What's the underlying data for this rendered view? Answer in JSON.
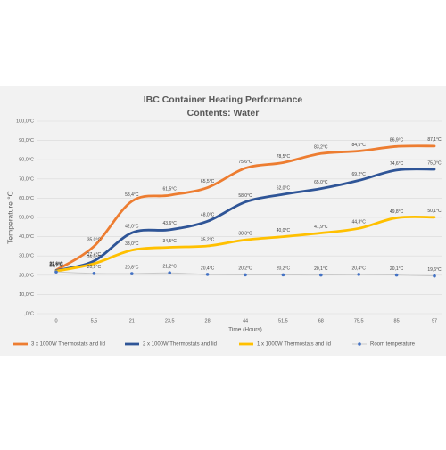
{
  "chart_data": {
    "type": "line",
    "title": "IBC Container Heating Performance",
    "subtitle": "Contents: Water",
    "x_label": "Time (Hours)",
    "y_label": "Temperature °C",
    "categories": [
      "0",
      "5,5",
      "21",
      "23,5",
      "28",
      "44",
      "51,5",
      "68",
      "75,5",
      "85",
      "97"
    ],
    "ylim": [
      0,
      100
    ],
    "yticks": [
      {
        "value": 0,
        "label": ",0°C"
      },
      {
        "value": 10,
        "label": "10,0°C"
      },
      {
        "value": 20,
        "label": "20,0°C"
      },
      {
        "value": 30,
        "label": "30,0°C"
      },
      {
        "value": 40,
        "label": "40,0°C"
      },
      {
        "value": 50,
        "label": "50,0°C"
      },
      {
        "value": 60,
        "label": "60,0°C"
      },
      {
        "value": 70,
        "label": "70,0°C"
      },
      {
        "value": 80,
        "label": "80,0°C"
      },
      {
        "value": 90,
        "label": "90,0°C"
      },
      {
        "value": 100,
        "label": "100,0°C"
      }
    ],
    "grid": true,
    "legend": "bottom",
    "series": [
      {
        "name": "3 x 1000W Thermostats and lid",
        "color": "#ed7d31",
        "values": [
          22.6,
          35.0,
          58.4,
          61.5,
          65.5,
          75.6,
          78.5,
          83.2,
          84.5,
          86.9,
          87.1
        ],
        "value_labels": [
          "22,6°C",
          "35,0°C",
          "58,4°C",
          "61,5°C",
          "65,5°C",
          "75,6°C",
          "78,5°C",
          "83,2°C",
          "84,5°C",
          "86,9°C",
          "87,1°C"
        ]
      },
      {
        "name": "2 x 1000W Thermostats and lid",
        "color": "#2f5597",
        "values": [
          22.4,
          27.4,
          42.0,
          43.6,
          48.0,
          58.0,
          62.0,
          65.0,
          69.2,
          74.6,
          75.0
        ],
        "value_labels": [
          "22,4°C",
          "27,4°C",
          "42,0°C",
          "43,6°C",
          "48,0°C",
          "58,0°C",
          "62,0°C",
          "65,0°C",
          "69,2°C",
          "74,6°C",
          "75,0°C"
        ]
      },
      {
        "name": "1 x 1000W Thermostats and lid",
        "color": "#ffc000",
        "values": [
          22.1,
          26.0,
          33.0,
          34.5,
          35.2,
          38.3,
          40.0,
          41.9,
          44.3,
          49.8,
          50.1
        ],
        "value_labels": [
          "22,1°C",
          "26,0°C",
          "33,0°C",
          "34,5°C",
          "35,2°C",
          "38,3°C",
          "40,0°C",
          "41,9°C",
          "44,3°C",
          "49,8°C",
          "50,1°C"
        ]
      },
      {
        "name": "Room temperature",
        "color": "#4472c4",
        "marker": "circle",
        "values": [
          21.7,
          20.9,
          20.8,
          21.2,
          20.4,
          20.2,
          20.2,
          20.1,
          20.4,
          20.1,
          19.6
        ],
        "value_labels": [
          "21,7°C",
          "20,9°C",
          "20,8°C",
          "21,2°C",
          "20,4°C",
          "20,2°C",
          "20,2°C",
          "20,1°C",
          "20,4°C",
          "20,1°C",
          "19,6°C"
        ]
      }
    ]
  }
}
